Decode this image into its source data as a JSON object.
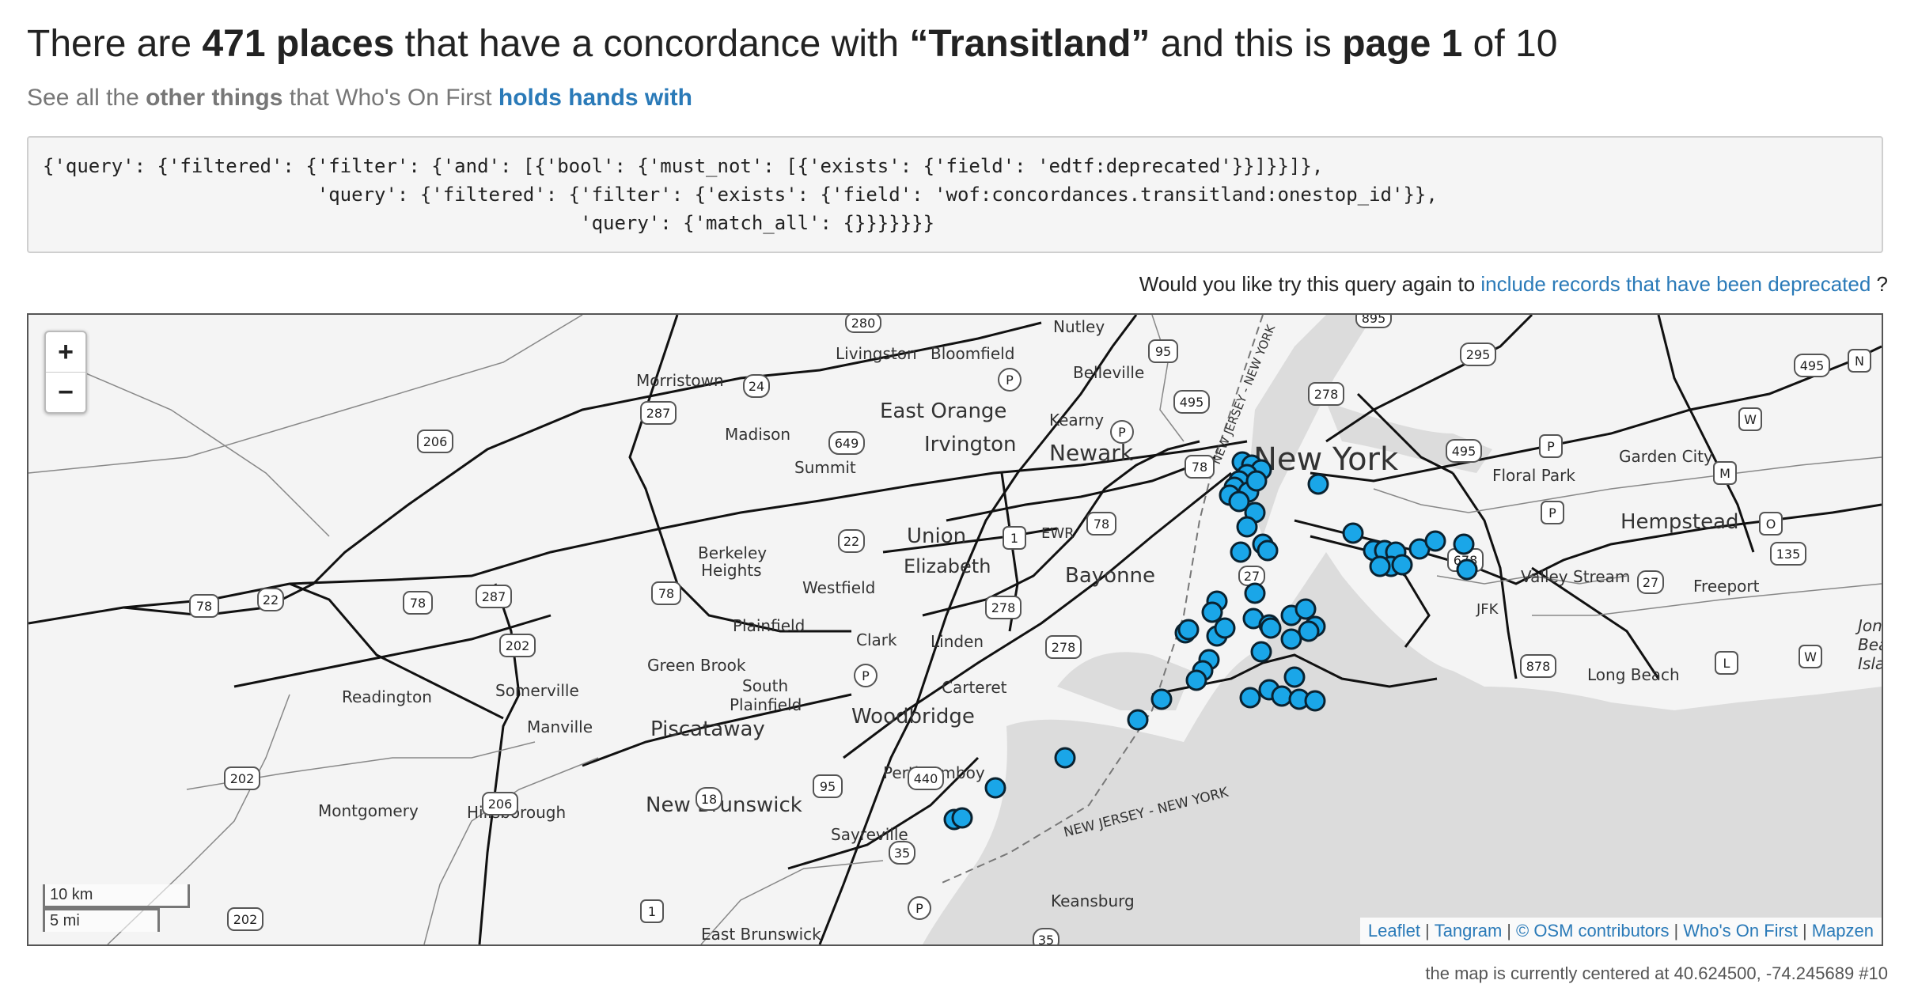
{
  "header": {
    "t1": "There are ",
    "count": "471 places",
    "t2": " that have a concordance with ",
    "concordance": "“Transitland”",
    "t3": " and this is ",
    "page": "page 1",
    "t4": " of 10"
  },
  "subtitle": {
    "t1": "See all the ",
    "other_things": "other things",
    "t2": " that Who's On First ",
    "link": "holds hands with"
  },
  "query_text": "{'query': {'filtered': {'filter': {'and': [{'bool': {'must_not': [{'exists': {'field': 'edtf:deprecated'}}]}}]},\n                        'query': {'filtered': {'filter': {'exists': {'field': 'wof:concordances.transitland:onestop_id'}},\n                                               'query': {'match_all': {}}}}}}}",
  "retry": {
    "prefix": "Would you like try this query again to ",
    "link": "include records that have been deprecated",
    "suffix": " ?"
  },
  "map": {
    "zoom_in": "+",
    "zoom_out": "−",
    "scale_km": "10 km",
    "scale_mi": "5 mi",
    "border_label_1": "NEW JERSEY - NEW YORK",
    "border_label_2": "NEW JERSEY - NEW YORK",
    "places": {
      "nutley": "Nutley",
      "livingston": "Livingston",
      "bloomfield": "Bloomfield",
      "belleville": "Belleville",
      "morristown": "Morristown",
      "east_orange": "East Orange",
      "kearny": "Kearny",
      "madison": "Madison",
      "irvington": "Irvington",
      "newark": "Newark",
      "new_york": "New York",
      "summit": "Summit",
      "floral_park": "Floral Park",
      "garden_city": "Garden City",
      "union": "Union",
      "ewr": "EWR",
      "hempstead": "Hempstead",
      "berkeley_heights_1": "Berkeley",
      "berkeley_heights_2": "Heights",
      "elizabeth": "Elizabeth",
      "bayonne": "Bayonne",
      "westfield": "Westfield",
      "valley_stream": "Valley Stream",
      "freeport": "Freeport",
      "jfk": "JFK",
      "plainfield": "Plainfield",
      "clark": "Clark",
      "linden": "Linden",
      "jones_beach_1": "Jon",
      "jones_beach_2": "Bea",
      "jones_beach_3": "Isla",
      "green_brook": "Green Brook",
      "south_plainfield_1": "South",
      "south_plainfield_2": "Plainfield",
      "carteret": "Carteret",
      "long_beach": "Long Beach",
      "readington": "Readington",
      "somerville": "Somerville",
      "woodbridge": "Woodbridge",
      "manville": "Manville",
      "piscataway": "Piscataway",
      "perth_amboy": "Perth Amboy",
      "montgomery": "Montgomery",
      "hillsborough": "Hillsborough",
      "new_brunswick": "New Brunswick",
      "sayreville": "Sayreville",
      "keansburg": "Keansburg",
      "east_brunswick": "East Brunswick"
    },
    "shields": {
      "s280": "280",
      "s95a": "95",
      "s895": "895",
      "s295": "295",
      "s495a": "495",
      "s495b": "495",
      "s495c": "495",
      "sN": "N",
      "s24": "24",
      "s287a": "287",
      "s206a": "206",
      "s649": "649",
      "sPa": "P",
      "sPb": "P",
      "sPc": "P",
      "sPd": "P",
      "sPe": "P",
      "sPf": "P",
      "s78a": "78",
      "s78b": "78",
      "s78c": "78",
      "s78d": "78",
      "s78e": "78",
      "sW": "W",
      "sM": "M",
      "s22a": "22",
      "s22b": "22",
      "s1a": "1",
      "s1b": "1",
      "s678": "678",
      "s135": "135",
      "s287b": "287",
      "s27a": "27",
      "s27b": "27",
      "s202a": "202",
      "s202b": "202",
      "s202c": "202",
      "s278a": "278",
      "s278b": "278",
      "s278c": "278",
      "s878": "878",
      "sL": "L",
      "sW2": "W",
      "s95b": "95",
      "s440": "440",
      "s18": "18",
      "s206b": "206",
      "s35a": "35",
      "s35b": "35",
      "sO": "O"
    }
  },
  "attribution": {
    "leaflet": "Leaflet",
    "tangram": "Tangram",
    "osm": "© OSM contributors",
    "wof": "Who's On First",
    "mapzen": "Mapzen"
  },
  "footnote": "the map is currently centered at 40.624500, -74.245689 #10",
  "colors": {
    "marker": "#1aa6e8",
    "link": "#2a7ab8",
    "water": "#dcdcdc"
  },
  "marker_count_visible": 58
}
